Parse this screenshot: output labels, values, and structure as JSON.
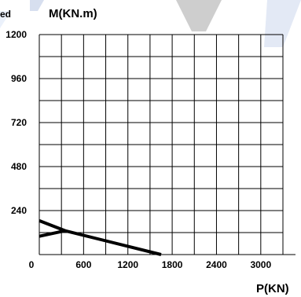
{
  "corner_text": "ed",
  "chart_data": {
    "type": "line",
    "ylabel": "M(KN.m)",
    "xlabel": "P(KN)",
    "x_ticks": [
      "0",
      "600",
      "1200",
      "1800",
      "2400",
      "3000"
    ],
    "y_ticks": [
      "240",
      "480",
      "720",
      "960",
      "1200"
    ],
    "xlim": [
      0,
      3300
    ],
    "ylim": [
      0,
      1200
    ],
    "grid": true,
    "series": [
      {
        "x": [
          0,
          350,
          1650
        ],
        "y": [
          185,
          130,
          0
        ]
      },
      {
        "x": [
          0,
          350
        ],
        "y": [
          100,
          130
        ]
      }
    ]
  }
}
